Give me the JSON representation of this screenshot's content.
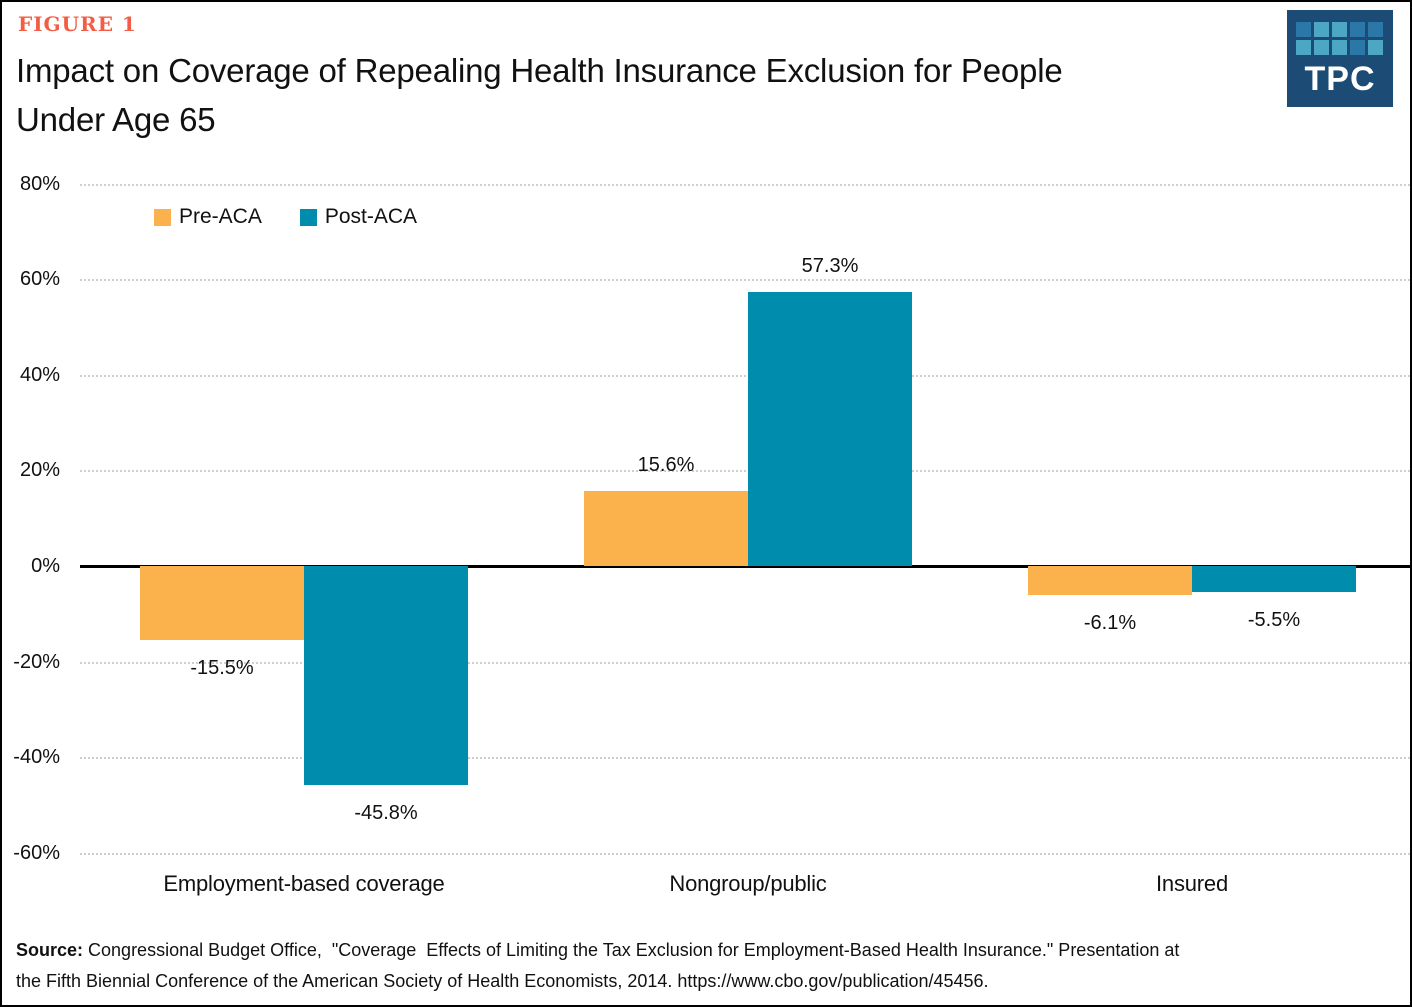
{
  "header": {
    "figure_label": "FIGURE 1",
    "title_line1": "Impact on Coverage of Repealing Health Insurance Exclusion for People",
    "title_line2": "Under Age 65"
  },
  "logo": {
    "text": "TPC",
    "background": "#1C4B75",
    "colors": {
      "teal": "#4BA7C3",
      "blue": "#2B77A7"
    },
    "squares": [
      "blue",
      "teal",
      "teal",
      "blue",
      "blue",
      "teal",
      "teal",
      "teal",
      "blue",
      "teal"
    ]
  },
  "chart_data": {
    "type": "bar",
    "categories": [
      "Employment-based coverage",
      "Nongroup/public",
      "Insured"
    ],
    "series": [
      {
        "name": "Pre-ACA",
        "color": "#FBB14C",
        "values": [
          -15.5,
          15.6,
          -6.1
        ],
        "labels": [
          "-15.5%",
          "15.6%",
          "-6.1%"
        ]
      },
      {
        "name": "Post-ACA",
        "color": "#008CAC",
        "values": [
          -45.8,
          57.3,
          -5.5
        ],
        "labels": [
          "-45.8%",
          "57.3%",
          "-5.5%"
        ]
      }
    ],
    "y_axis": {
      "ticks": [
        {
          "value": 80,
          "label": "80%"
        },
        {
          "value": 60,
          "label": "60%"
        },
        {
          "value": 40,
          "label": "40%"
        },
        {
          "value": 20,
          "label": "20%"
        },
        {
          "value": 0,
          "label": "0%"
        },
        {
          "value": -20,
          "label": "-20%"
        },
        {
          "value": -40,
          "label": "-40%"
        },
        {
          "value": -60,
          "label": "-60%"
        }
      ]
    },
    "ylim": [
      -60,
      80
    ],
    "grid": "horizontal-dotted",
    "legend_position": "top-left-inside",
    "title": "Impact on Coverage of Repealing Health Insurance Exclusion for People Under Age 65"
  },
  "source": {
    "label": "Source:",
    "line1_rest": " Congressional Budget Office,  \"Coverage  Effects of Limiting the Tax Exclusion for Employment-Based Health Insurance.\" Presentation at",
    "line2": "the Fifth Biennial Conference of the American Society of Health Economists, 2014. https://www.cbo.gov/publication/45456."
  }
}
